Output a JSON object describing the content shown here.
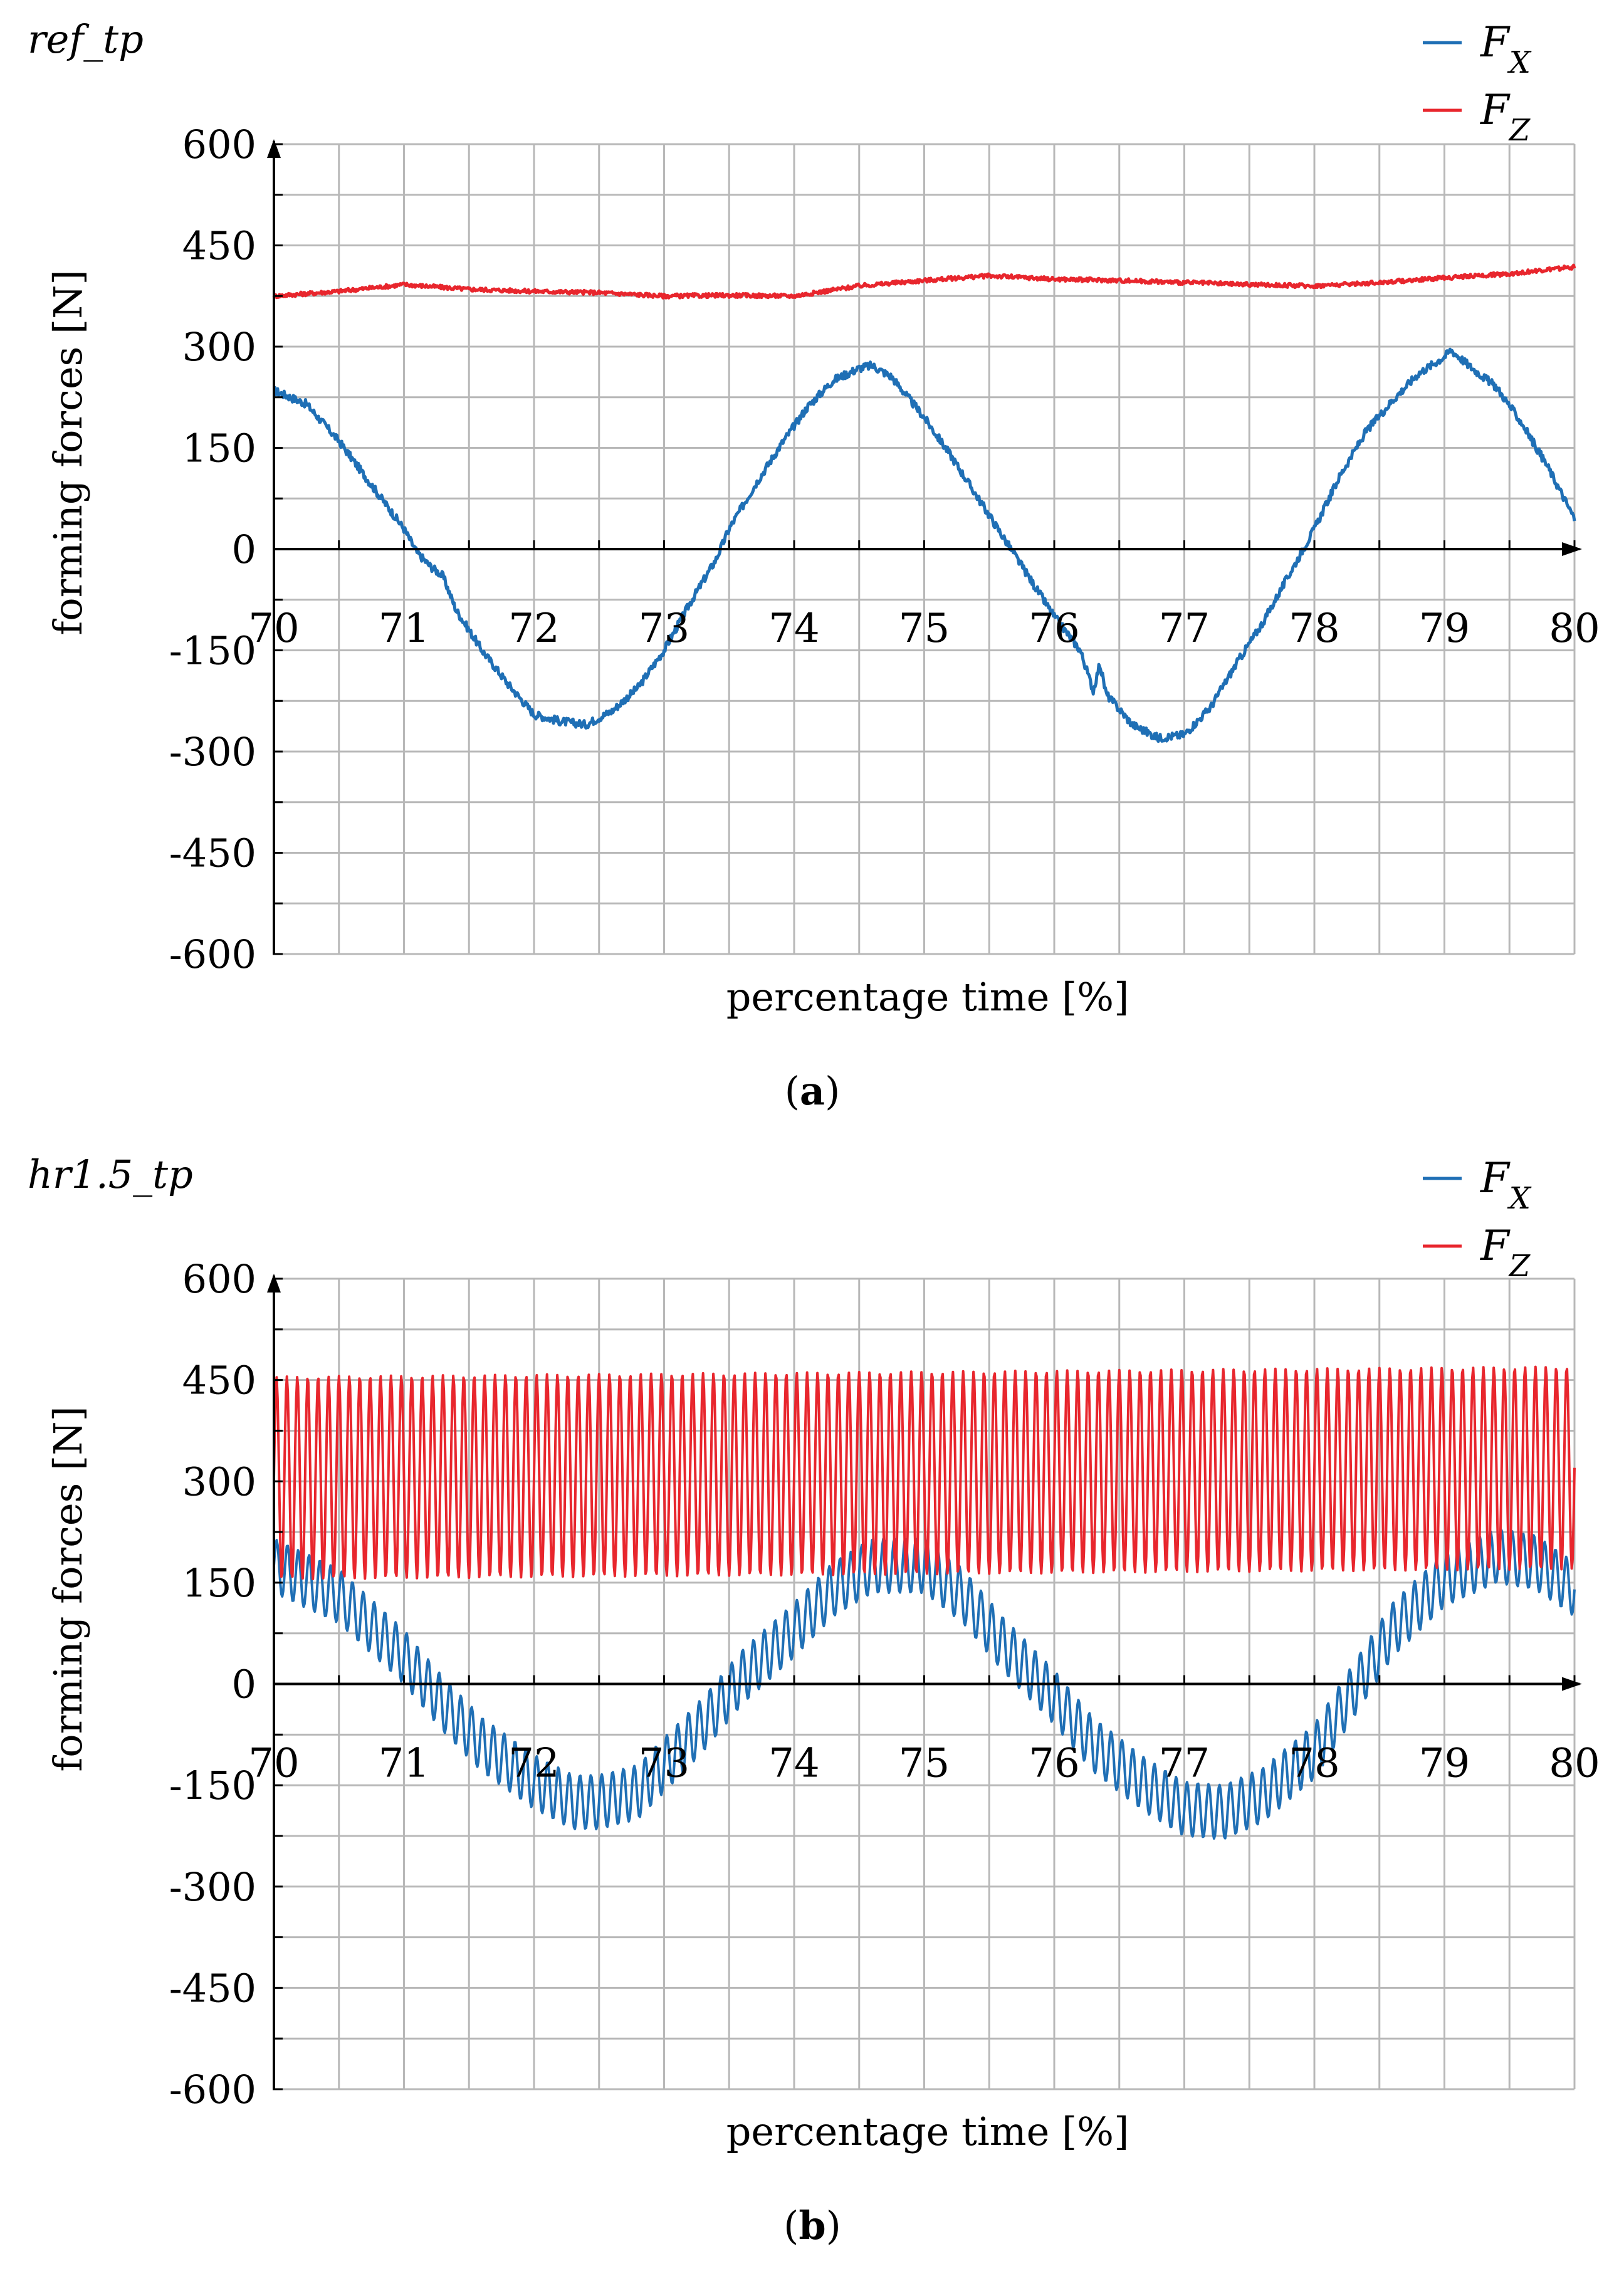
{
  "colors": {
    "fx": "#1f6fb5",
    "fz": "#e8262d",
    "grid": "#b8b8b8",
    "axis": "#000000"
  },
  "chart_data": [
    {
      "type": "line",
      "panel_label": "ref_tp",
      "caption": "a",
      "xlabel": "percentage time [%]",
      "ylabel": "forming forces [N]",
      "xlim": [
        70,
        80
      ],
      "ylim": [
        -600,
        600
      ],
      "x_ticks": [
        70,
        71,
        72,
        73,
        74,
        75,
        76,
        77,
        78,
        79,
        80
      ],
      "y_ticks": [
        600,
        450,
        300,
        150,
        0,
        -150,
        -300,
        -450,
        -600
      ],
      "grid": true,
      "legend_position": "top-right",
      "legend": [
        {
          "sym": "F",
          "sub": "X",
          "color": "#1f6fb5"
        },
        {
          "sym": "F",
          "sub": "Z",
          "color": "#e8262d"
        }
      ],
      "series": [
        {
          "key": "fx",
          "color": "#1f6fb5",
          "points": [
            [
              70,
              235
            ],
            [
              70.25,
              215
            ],
            [
              70.5,
              160
            ],
            [
              70.75,
              95
            ],
            [
              71,
              30
            ],
            [
              71.1,
              -5
            ],
            [
              71.2,
              -25
            ],
            [
              71.3,
              -40
            ],
            [
              71.4,
              -90
            ],
            [
              71.6,
              -150
            ],
            [
              71.8,
              -200
            ],
            [
              72,
              -245
            ],
            [
              72.2,
              -255
            ],
            [
              72.4,
              -260
            ],
            [
              72.6,
              -240
            ],
            [
              72.8,
              -205
            ],
            [
              73,
              -150
            ],
            [
              73.2,
              -80
            ],
            [
              73.4,
              -15
            ],
            [
              73.5,
              30
            ],
            [
              73.7,
              95
            ],
            [
              73.9,
              155
            ],
            [
              74.1,
              210
            ],
            [
              74.3,
              250
            ],
            [
              74.5,
              268
            ],
            [
              74.6,
              272
            ],
            [
              74.75,
              255
            ],
            [
              75,
              195
            ],
            [
              75.2,
              140
            ],
            [
              75.4,
              80
            ],
            [
              75.6,
              20
            ],
            [
              75.8,
              -40
            ],
            [
              76,
              -100
            ],
            [
              76.2,
              -150
            ],
            [
              76.3,
              -210
            ],
            [
              76.35,
              -170
            ],
            [
              76.4,
              -215
            ],
            [
              76.6,
              -260
            ],
            [
              76.8,
              -280
            ],
            [
              77,
              -275
            ],
            [
              77.2,
              -235
            ],
            [
              77.4,
              -170
            ],
            [
              77.6,
              -110
            ],
            [
              77.8,
              -40
            ],
            [
              78,
              30
            ],
            [
              78.2,
              110
            ],
            [
              78.4,
              175
            ],
            [
              78.6,
              220
            ],
            [
              78.8,
              260
            ],
            [
              79,
              285
            ],
            [
              79.05,
              295
            ],
            [
              79.2,
              270
            ],
            [
              79.4,
              240
            ],
            [
              79.6,
              185
            ],
            [
              79.8,
              120
            ],
            [
              80,
              45
            ]
          ],
          "noise": 6
        },
        {
          "key": "fz",
          "color": "#e8262d",
          "points": [
            [
              70,
              375
            ],
            [
              70.5,
              382
            ],
            [
              71,
              392
            ],
            [
              71.5,
              385
            ],
            [
              72,
              382
            ],
            [
              72.5,
              380
            ],
            [
              73,
              375
            ],
            [
              73.5,
              376
            ],
            [
              74,
              375
            ],
            [
              74.5,
              390
            ],
            [
              75,
              398
            ],
            [
              75.5,
              405
            ],
            [
              76,
              400
            ],
            [
              76.5,
              398
            ],
            [
              77,
              395
            ],
            [
              77.5,
              392
            ],
            [
              78,
              390
            ],
            [
              78.5,
              395
            ],
            [
              79,
              402
            ],
            [
              79.5,
              408
            ],
            [
              80,
              418
            ]
          ],
          "noise": 3
        }
      ]
    },
    {
      "type": "line",
      "panel_label": "hr1.5_tp",
      "caption": "b",
      "xlabel": "percentage time [%]",
      "ylabel": "forming forces [N]",
      "xlim": [
        70,
        80
      ],
      "ylim": [
        -600,
        600
      ],
      "x_ticks": [
        70,
        71,
        72,
        73,
        74,
        75,
        76,
        77,
        78,
        79,
        80
      ],
      "y_ticks": [
        600,
        450,
        300,
        150,
        0,
        -150,
        -300,
        -450,
        -600
      ],
      "grid": true,
      "legend_position": "top-right",
      "legend": [
        {
          "sym": "F",
          "sub": "X",
          "color": "#1f6fb5"
        },
        {
          "sym": "F",
          "sub": "Z",
          "color": "#e8262d"
        }
      ],
      "series": [
        {
          "key": "fx",
          "color": "#1f6fb5",
          "points": [
            [
              70,
              175
            ],
            [
              70.5,
              130
            ],
            [
              71,
              40
            ],
            [
              71.3,
              -30
            ],
            [
              71.6,
              -90
            ],
            [
              72,
              -145
            ],
            [
              72.3,
              -175
            ],
            [
              72.5,
              -175
            ],
            [
              72.8,
              -160
            ],
            [
              73,
              -120
            ],
            [
              73.3,
              -60
            ],
            [
              73.6,
              10
            ],
            [
              74,
              80
            ],
            [
              74.3,
              140
            ],
            [
              74.6,
              175
            ],
            [
              75,
              175
            ],
            [
              75.3,
              130
            ],
            [
              75.6,
              60
            ],
            [
              76,
              -20
            ],
            [
              76.3,
              -90
            ],
            [
              76.7,
              -150
            ],
            [
              77,
              -185
            ],
            [
              77.3,
              -190
            ],
            [
              77.6,
              -165
            ],
            [
              78,
              -100
            ],
            [
              78.3,
              -10
            ],
            [
              78.6,
              80
            ],
            [
              79,
              155
            ],
            [
              79.4,
              190
            ],
            [
              79.7,
              180
            ],
            [
              80,
              140
            ]
          ],
          "osc_amp": 40,
          "osc_count": 120
        },
        {
          "key": "fz",
          "color": "#e8262d",
          "points": [
            [
              70,
              305
            ],
            [
              80,
              320
            ]
          ],
          "osc_amp": 150,
          "osc_count": 125
        }
      ]
    }
  ]
}
